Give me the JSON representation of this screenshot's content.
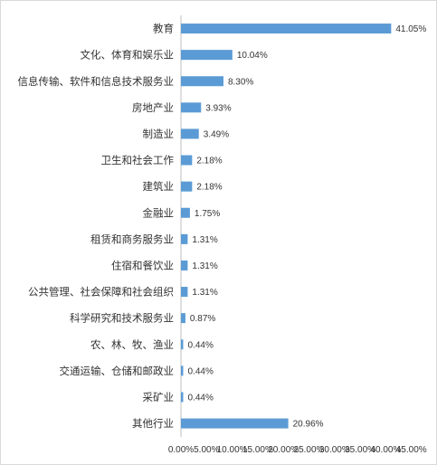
{
  "chart_data": {
    "type": "bar",
    "orientation": "horizontal",
    "title": "",
    "xlabel": "",
    "ylabel": "",
    "categories": [
      "教育",
      "文化、体育和娱乐业",
      "信息传输、软件和信息技术服务业",
      "房地产业",
      "制造业",
      "卫生和社会工作",
      "建筑业",
      "金融业",
      "租赁和商务服务业",
      "住宿和餐饮业",
      "公共管理、社会保障和社会组织",
      "科学研究和技术服务业",
      "农、林、牧、渔业",
      "交通运输、仓储和邮政业",
      "采矿业",
      "其他行业"
    ],
    "values": [
      41.05,
      10.04,
      8.3,
      3.93,
      3.49,
      2.18,
      2.18,
      1.75,
      1.31,
      1.31,
      1.31,
      0.87,
      0.44,
      0.44,
      0.44,
      20.96
    ],
    "data_labels": [
      "41.05%",
      "10.04%",
      "8.30%",
      "3.93%",
      "3.49%",
      "2.18%",
      "2.18%",
      "1.75%",
      "1.31%",
      "1.31%",
      "1.31%",
      "0.87%",
      "0.44%",
      "0.44%",
      "0.44%",
      "20.96%"
    ],
    "x_ticks": [
      0,
      5,
      10,
      15,
      20,
      25,
      30,
      35,
      40,
      45
    ],
    "x_tick_labels": [
      "0.00%",
      "5.00%",
      "10.00%",
      "15.00%",
      "20.00%",
      "25.00%",
      "30.00%",
      "35.00%",
      "40.00%",
      "45.00%"
    ],
    "xlim": [
      0,
      45
    ],
    "grid": false,
    "legend": "none",
    "bar_color": "#5b9bd5"
  }
}
